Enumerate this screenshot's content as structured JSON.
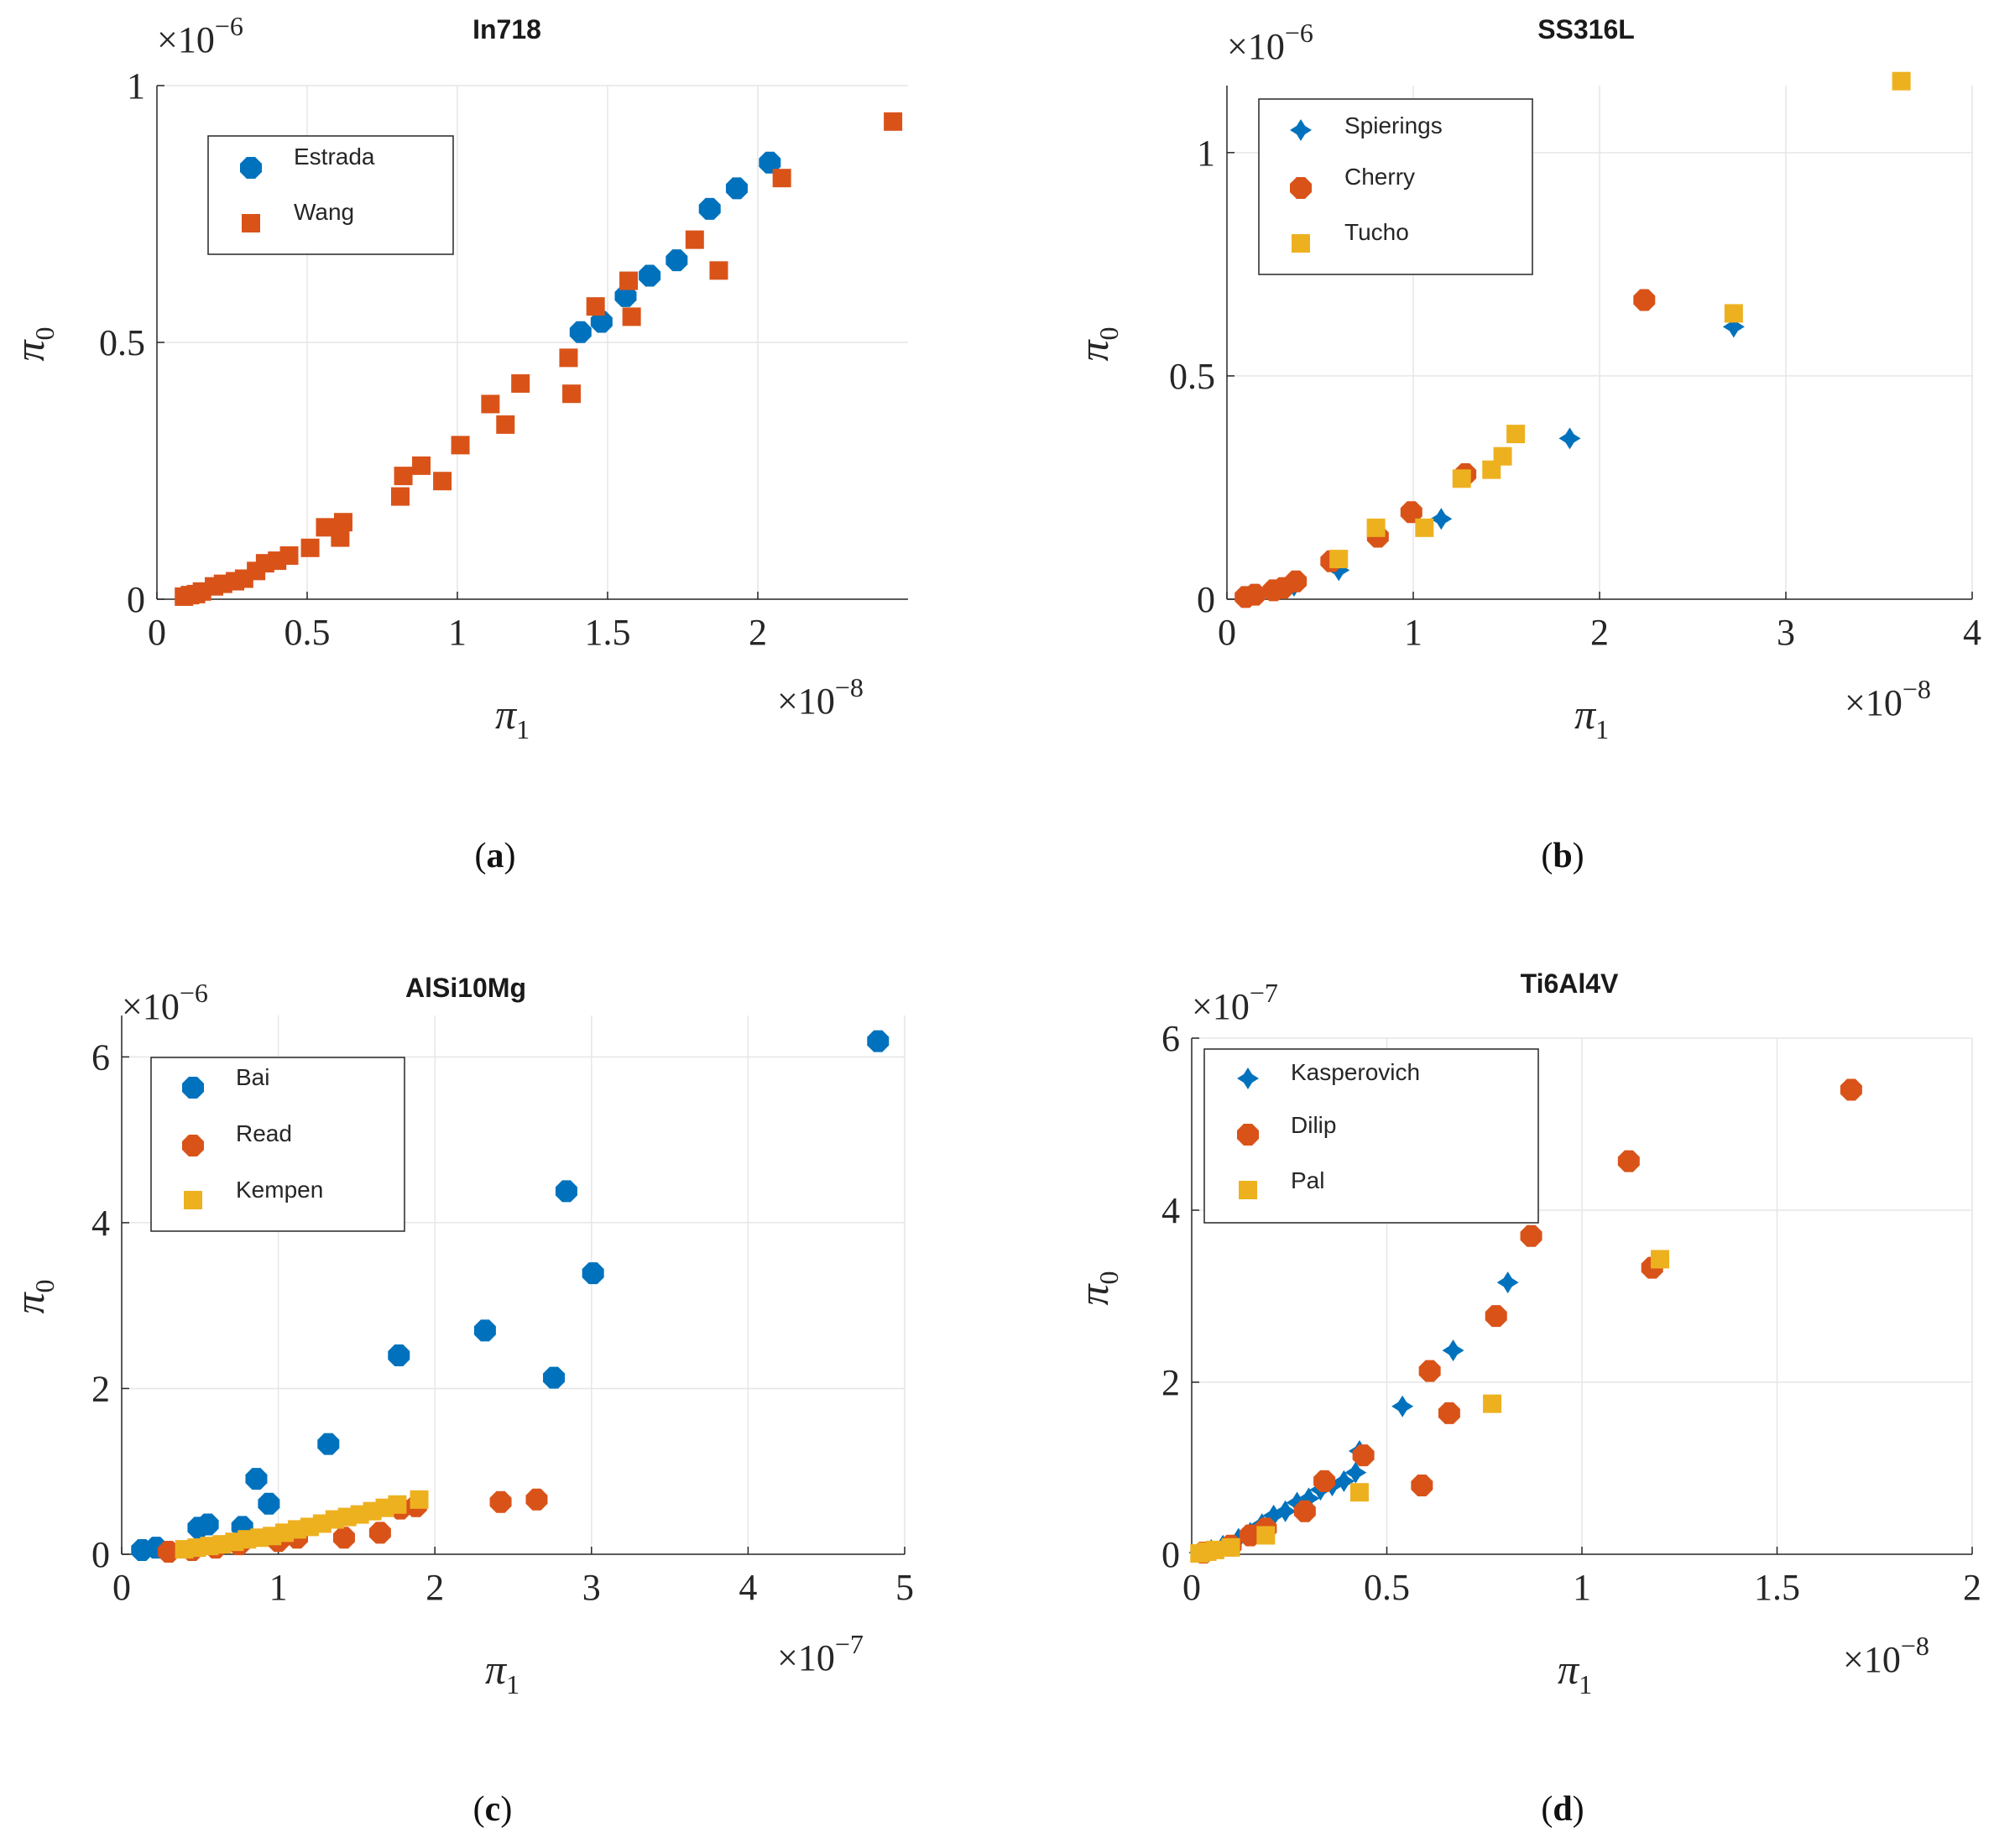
{
  "figure": {
    "panels": [
      {
        "caption_open": "(",
        "caption_letter": "a",
        "caption_close": ")",
        "xlabel_sym": "π",
        "xlabel_sub": "1",
        "ylabel_sym": "π",
        "ylabel_sub": "0",
        "xexp_prefix": "×10",
        "xexp_power": "−8",
        "yexp_prefix": "×10",
        "yexp_power": "−6"
      },
      {
        "caption_open": "(",
        "caption_letter": "b",
        "caption_close": ")",
        "xlabel_sym": "π",
        "xlabel_sub": "1",
        "ylabel_sym": "π",
        "ylabel_sub": "0",
        "xexp_prefix": "×10",
        "xexp_power": "−8",
        "yexp_prefix": "×10",
        "yexp_power": "−6"
      },
      {
        "caption_open": "(",
        "caption_letter": "c",
        "caption_close": ")",
        "xlabel_sym": "π",
        "xlabel_sub": "1",
        "ylabel_sym": "π",
        "ylabel_sub": "0",
        "xexp_prefix": "×10",
        "xexp_power": "−7",
        "yexp_prefix": "×10",
        "yexp_power": "−6"
      },
      {
        "caption_open": "(",
        "caption_letter": "d",
        "caption_close": ")",
        "xlabel_sym": "π",
        "xlabel_sub": "1",
        "ylabel_sym": "π",
        "ylabel_sub": "0",
        "xexp_prefix": "×10",
        "xexp_power": "−8",
        "yexp_prefix": "×10",
        "yexp_power": "−7"
      }
    ]
  },
  "colors": {
    "blue": "#0072bd",
    "orange": "#d95319",
    "yellow": "#edb120",
    "grid": "#e6e6e6",
    "axis": "#262626"
  },
  "chart_data": [
    {
      "type": "scatter",
      "title": "In718",
      "xlabel": "π1",
      "ylabel": "π0",
      "x_multiplier": "1e-8",
      "y_multiplier": "1e-6",
      "xlim": [
        0,
        2.5
      ],
      "ylim": [
        0,
        1.0
      ],
      "xticks": [
        0,
        0.5,
        1,
        1.5,
        2
      ],
      "xtick_labels": [
        "0",
        "0.5",
        "1",
        "1.5",
        "2"
      ],
      "yticks": [
        0,
        0.5,
        1
      ],
      "ytick_labels": [
        "0",
        "0.5",
        "1"
      ],
      "grid": true,
      "legend_position": "top-left",
      "series": [
        {
          "name": "Estrada",
          "marker": "hexagon",
          "color": "#0072bd",
          "x": [
            1.41,
            1.48,
            1.56,
            1.64,
            1.73,
            1.84,
            1.93,
            2.04
          ],
          "y": [
            0.52,
            0.54,
            0.59,
            0.63,
            0.66,
            0.76,
            0.8,
            0.85
          ]
        },
        {
          "name": "Wang",
          "marker": "square",
          "color": "#d95319",
          "x": [
            0.09,
            0.11,
            0.13,
            0.15,
            0.19,
            0.22,
            0.26,
            0.29,
            0.33,
            0.36,
            0.4,
            0.44,
            0.51,
            0.56,
            0.61,
            0.62,
            0.81,
            0.82,
            0.88,
            0.95,
            1.01,
            1.11,
            1.16,
            1.21,
            1.37,
            1.38,
            1.46,
            1.57,
            1.58,
            1.79,
            1.87,
            2.08,
            2.45
          ],
          "y": [
            0.005,
            0.008,
            0.01,
            0.015,
            0.025,
            0.03,
            0.035,
            0.04,
            0.055,
            0.07,
            0.075,
            0.085,
            0.1,
            0.14,
            0.12,
            0.15,
            0.2,
            0.24,
            0.26,
            0.23,
            0.3,
            0.38,
            0.34,
            0.42,
            0.47,
            0.4,
            0.57,
            0.62,
            0.55,
            0.7,
            0.64,
            0.82,
            0.93
          ]
        }
      ]
    },
    {
      "type": "scatter",
      "title": "SS316L",
      "xlabel": "π1",
      "ylabel": "π0",
      "x_multiplier": "1e-8",
      "y_multiplier": "1e-6",
      "xlim": [
        0,
        4
      ],
      "ylim": [
        0,
        1.15
      ],
      "xticks": [
        0,
        1,
        2,
        3,
        4
      ],
      "xtick_labels": [
        "0",
        "1",
        "2",
        "3",
        "4"
      ],
      "yticks": [
        0,
        0.5,
        1
      ],
      "ytick_labels": [
        "0",
        "0.5",
        "1"
      ],
      "grid": true,
      "legend_position": "top-left",
      "series": [
        {
          "name": "Spierings",
          "marker": "diamond",
          "color": "#0072bd",
          "x": [
            0.36,
            0.6,
            1.15,
            1.84,
            2.72
          ],
          "y": [
            0.03,
            0.065,
            0.18,
            0.36,
            0.61
          ]
        },
        {
          "name": "Cherry",
          "marker": "hexagon",
          "color": "#d95319",
          "x": [
            0.1,
            0.15,
            0.25,
            0.3,
            0.37,
            0.56,
            0.81,
            0.99,
            1.28,
            2.24
          ],
          "y": [
            0.005,
            0.01,
            0.02,
            0.025,
            0.04,
            0.085,
            0.14,
            0.195,
            0.28,
            0.67
          ]
        },
        {
          "name": "Tucho",
          "marker": "square",
          "color": "#edb120",
          "x": [
            0.6,
            0.8,
            1.06,
            1.26,
            1.42,
            1.48,
            1.55,
            2.72,
            3.62
          ],
          "y": [
            0.09,
            0.16,
            0.16,
            0.27,
            0.29,
            0.32,
            0.37,
            0.64,
            1.16
          ]
        }
      ]
    },
    {
      "type": "scatter",
      "title": "AlSi10Mg",
      "xlabel": "π1",
      "ylabel": "π0",
      "x_multiplier": "1e-7",
      "y_multiplier": "1e-6",
      "xlim": [
        0,
        5
      ],
      "ylim": [
        0,
        6.5
      ],
      "xticks": [
        0,
        1,
        2,
        3,
        4,
        5
      ],
      "xtick_labels": [
        "0",
        "1",
        "2",
        "3",
        "4",
        "5"
      ],
      "yticks": [
        0,
        2,
        4,
        6
      ],
      "ytick_labels": [
        "0",
        "2",
        "4",
        "6"
      ],
      "grid": true,
      "legend_position": "top-left",
      "series": [
        {
          "name": "Bai",
          "marker": "hexagon",
          "color": "#0072bd",
          "x": [
            0.13,
            0.22,
            0.49,
            0.55,
            0.77,
            0.86,
            0.94,
            1.32,
            1.77,
            2.32,
            2.76,
            2.84,
            3.01,
            4.83
          ],
          "y": [
            0.05,
            0.08,
            0.32,
            0.36,
            0.33,
            0.91,
            0.61,
            1.33,
            2.4,
            2.7,
            2.13,
            4.38,
            3.39,
            6.19
          ]
        },
        {
          "name": "Read",
          "marker": "hexagon",
          "color": "#d95319",
          "x": [
            0.3,
            0.45,
            0.6,
            0.75,
            1.0,
            1.12,
            1.42,
            1.65,
            1.78,
            1.88,
            2.42,
            2.65
          ],
          "y": [
            0.03,
            0.05,
            0.08,
            0.12,
            0.16,
            0.2,
            0.2,
            0.26,
            0.55,
            0.58,
            0.63,
            0.66
          ]
        },
        {
          "name": "Kempen",
          "marker": "square",
          "color": "#edb120",
          "x": [
            0.4,
            0.48,
            0.56,
            0.64,
            0.72,
            0.8,
            0.88,
            0.96,
            1.04,
            1.12,
            1.2,
            1.28,
            1.36,
            1.44,
            1.52,
            1.6,
            1.68,
            1.76,
            1.9
          ],
          "y": [
            0.06,
            0.08,
            0.1,
            0.12,
            0.15,
            0.18,
            0.2,
            0.22,
            0.26,
            0.3,
            0.33,
            0.37,
            0.42,
            0.45,
            0.48,
            0.52,
            0.56,
            0.6,
            0.66
          ]
        }
      ]
    },
    {
      "type": "scatter",
      "title": "Ti6Al4V",
      "xlabel": "π1",
      "ylabel": "π0",
      "x_multiplier": "1e-8",
      "y_multiplier": "1e-7",
      "xlim": [
        0,
        2
      ],
      "ylim": [
        0,
        6
      ],
      "xticks": [
        0,
        0.5,
        1,
        1.5,
        2
      ],
      "xtick_labels": [
        "0",
        "0.5",
        "1",
        "1.5",
        "2"
      ],
      "yticks": [
        0,
        2,
        4,
        6
      ],
      "ytick_labels": [
        "0",
        "2",
        "4",
        "6"
      ],
      "grid": true,
      "legend_position": "top-left",
      "series": [
        {
          "name": "Kasperovich",
          "marker": "diamond",
          "color": "#0072bd",
          "x": [
            0.02,
            0.05,
            0.08,
            0.12,
            0.15,
            0.18,
            0.21,
            0.24,
            0.27,
            0.3,
            0.33,
            0.36,
            0.39,
            0.42,
            0.43,
            0.54,
            0.67,
            0.81
          ],
          "y": [
            0.02,
            0.05,
            0.1,
            0.18,
            0.25,
            0.35,
            0.45,
            0.5,
            0.6,
            0.65,
            0.75,
            0.8,
            0.85,
            0.95,
            1.2,
            1.72,
            2.37,
            3.16
          ]
        },
        {
          "name": "Dilip",
          "marker": "hexagon",
          "color": "#d95319",
          "x": [
            0.03,
            0.1,
            0.15,
            0.19,
            0.29,
            0.34,
            0.44,
            0.59,
            0.61,
            0.66,
            0.78,
            0.87,
            1.12,
            1.18,
            1.69
          ],
          "y": [
            0.02,
            0.1,
            0.22,
            0.3,
            0.5,
            0.85,
            1.15,
            0.8,
            2.13,
            1.64,
            2.77,
            3.7,
            4.57,
            3.33,
            5.4
          ]
        },
        {
          "name": "Pal",
          "marker": "square",
          "color": "#edb120",
          "x": [
            0.02,
            0.04,
            0.06,
            0.1,
            0.19,
            0.43,
            0.77,
            1.2
          ],
          "y": [
            0.01,
            0.03,
            0.05,
            0.08,
            0.22,
            0.72,
            1.75,
            3.43
          ]
        }
      ]
    }
  ]
}
